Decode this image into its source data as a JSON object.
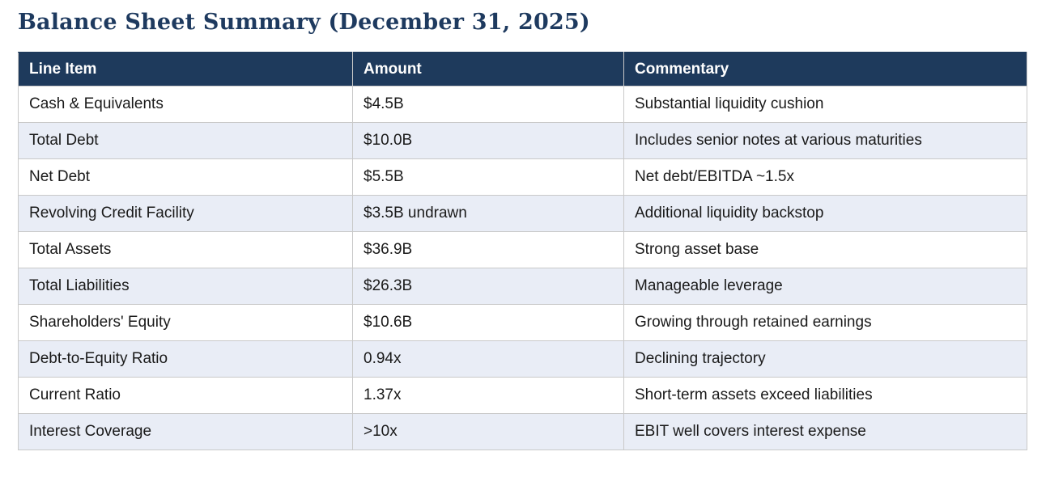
{
  "page": {
    "title": "Balance Sheet Summary (December 31, 2025)"
  },
  "colors": {
    "title_text": "#1e3a5f",
    "header_bg": "#1e3a5c",
    "header_text": "#ffffff",
    "alt_row_bg": "#e9edf6",
    "row_bg": "#ffffff",
    "border": "#c9c9c9",
    "body_text": "#1a1a1a"
  },
  "table": {
    "columns": [
      "Line Item",
      "Amount",
      "Commentary"
    ],
    "rows": [
      {
        "line_item": "Cash & Equivalents",
        "amount": "$4.5B",
        "commentary": "Substantial liquidity cushion"
      },
      {
        "line_item": "Total Debt",
        "amount": "$10.0B",
        "commentary": "Includes senior notes at various maturities"
      },
      {
        "line_item": "Net Debt",
        "amount": "$5.5B",
        "commentary": "Net debt/EBITDA ~1.5x"
      },
      {
        "line_item": "Revolving Credit Facility",
        "amount": "$3.5B undrawn",
        "commentary": "Additional liquidity backstop"
      },
      {
        "line_item": "Total Assets",
        "amount": "$36.9B",
        "commentary": "Strong asset base"
      },
      {
        "line_item": "Total Liabilities",
        "amount": "$26.3B",
        "commentary": "Manageable leverage"
      },
      {
        "line_item": "Shareholders' Equity",
        "amount": "$10.6B",
        "commentary": "Growing through retained earnings"
      },
      {
        "line_item": "Debt-to-Equity Ratio",
        "amount": "0.94x",
        "commentary": "Declining trajectory"
      },
      {
        "line_item": "Current Ratio",
        "amount": "1.37x",
        "commentary": "Short-term assets exceed liabilities"
      },
      {
        "line_item": "Interest Coverage",
        "amount": ">10x",
        "commentary": "EBIT well covers interest expense"
      }
    ]
  }
}
